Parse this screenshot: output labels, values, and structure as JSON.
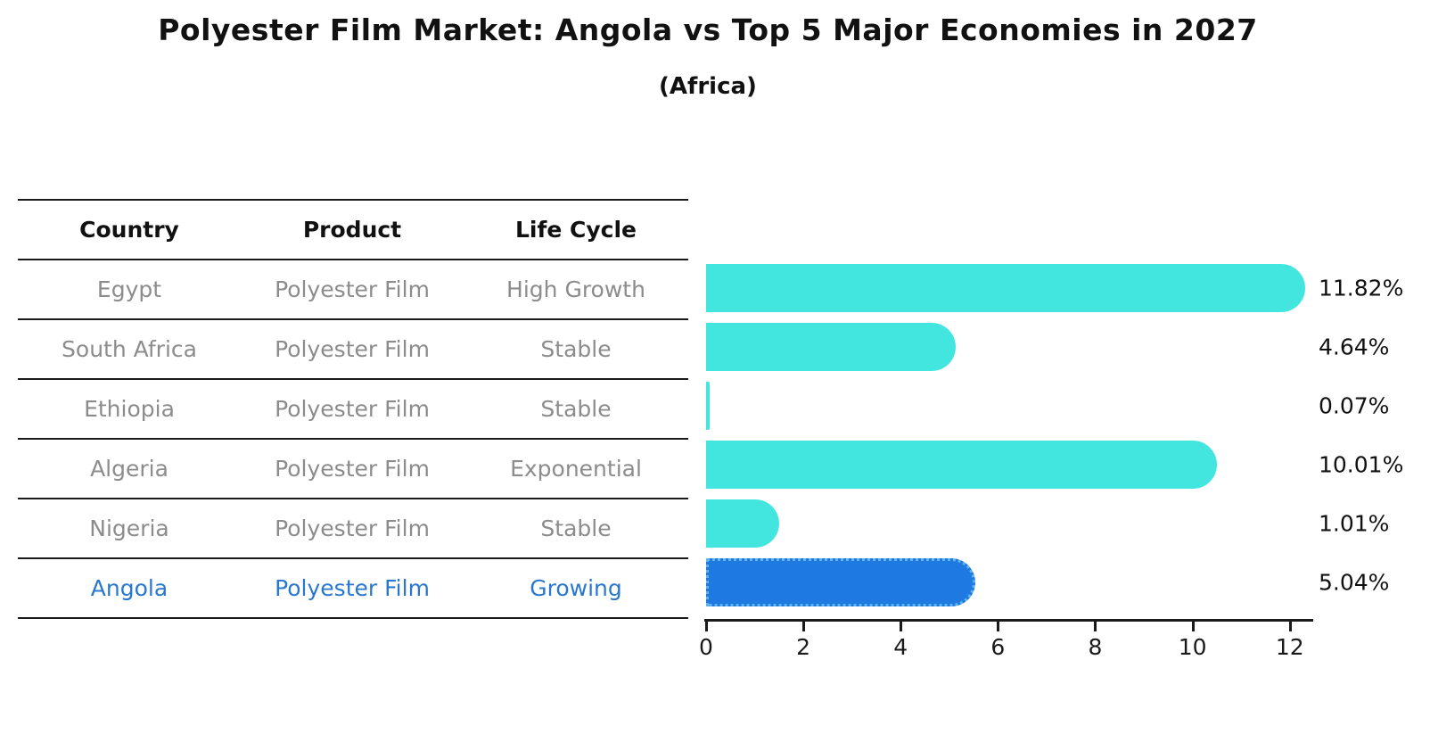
{
  "chart": {
    "title": "Polyester Film Market: Angola vs Top 5 Major Economies in 2027",
    "subtitle": "(Africa)"
  },
  "table": {
    "headers": [
      "Country",
      "Product",
      "Life Cycle"
    ]
  },
  "chart_data": {
    "type": "bar",
    "orientation": "horizontal",
    "title": "Polyester Film Market: Angola vs Top 5 Major Economies in 2027",
    "subtitle": "(Africa)",
    "categories": [
      "Egypt",
      "South Africa",
      "Ethiopia",
      "Algeria",
      "Nigeria",
      "Angola"
    ],
    "values": [
      11.82,
      4.64,
      0.07,
      10.01,
      1.01,
      5.04
    ],
    "rows": [
      {
        "country": "Egypt",
        "product": "Polyester Film",
        "life_cycle": "High Growth",
        "value": 11.82,
        "label": "11.82%",
        "highlight": false
      },
      {
        "country": "South Africa",
        "product": "Polyester Film",
        "life_cycle": "Stable",
        "value": 4.64,
        "label": "4.64%",
        "highlight": false
      },
      {
        "country": "Ethiopia",
        "product": "Polyester Film",
        "life_cycle": "Stable",
        "value": 0.07,
        "label": "0.07%",
        "highlight": false
      },
      {
        "country": "Algeria",
        "product": "Polyester Film",
        "life_cycle": "Exponential",
        "value": 10.01,
        "label": "10.01%",
        "highlight": false
      },
      {
        "country": "Nigeria",
        "product": "Polyester Film",
        "life_cycle": "Stable",
        "value": 1.01,
        "label": "1.01%",
        "highlight": false
      },
      {
        "country": "Angola",
        "product": "Polyester Film",
        "life_cycle": "Growing",
        "value": 5.04,
        "label": "5.04%",
        "highlight": true
      }
    ],
    "x_ticks": [
      0,
      2,
      4,
      6,
      8,
      10,
      12
    ],
    "xlim": [
      0,
      12.5
    ],
    "grid": false,
    "legend": "none",
    "colors": {
      "bar": "#43E6DF",
      "highlight_bar": "#1E7AE0",
      "highlight_text": "#2878CF",
      "text_gray": "#8c8c8c",
      "axis": "#1a1a1a"
    }
  }
}
